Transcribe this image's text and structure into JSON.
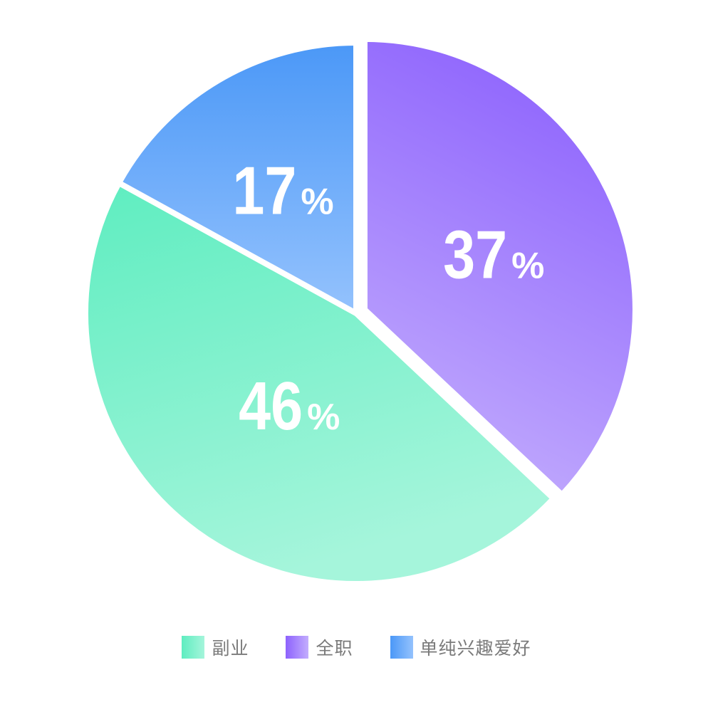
{
  "chart_data": {
    "type": "pie",
    "categories": [
      "副业",
      "全职",
      "单纯兴趣爱好"
    ],
    "values": [
      46,
      37,
      17
    ],
    "labels": [
      "46",
      "37",
      "17"
    ],
    "percent_symbol": "%",
    "legend_position": "bottom-center",
    "exploded_slice": "全职",
    "colors": {
      "副业": [
        "#5eedc0",
        "#a5f5db"
      ],
      "全职": [
        "#8d62fd",
        "#c3adfd"
      ],
      "单纯兴趣爱好": [
        "#4b98f7",
        "#94c2fd"
      ]
    }
  },
  "legend": {
    "items": [
      {
        "label": "副业",
        "color_start": "#5eedc0",
        "color_end": "#a5f5db"
      },
      {
        "label": "全职",
        "color_start": "#8d62fd",
        "color_end": "#c3adfd"
      },
      {
        "label": "单纯兴趣爱好",
        "color_start": "#4b98f7",
        "color_end": "#94c2fd"
      }
    ]
  }
}
